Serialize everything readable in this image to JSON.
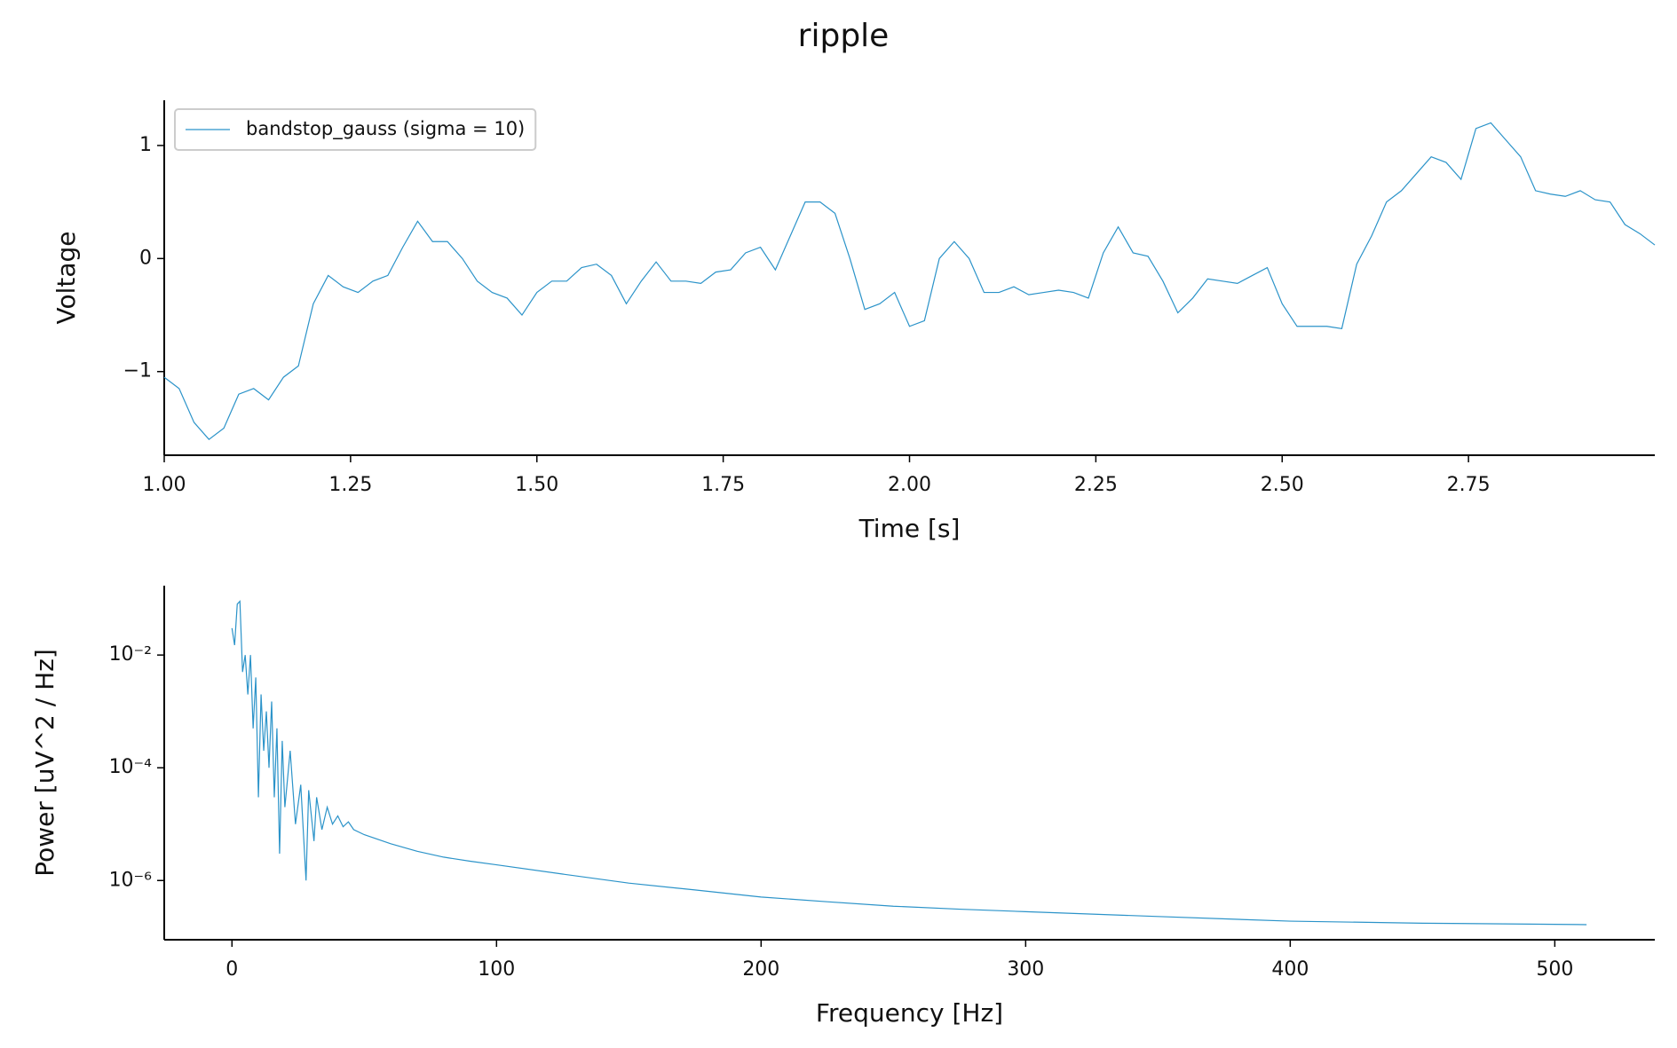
{
  "title": "ripple",
  "chart_data": [
    {
      "type": "line",
      "xlabel": "Time [s]",
      "ylabel": "Voltage",
      "x": [
        1.0,
        1.02,
        1.04,
        1.06,
        1.08,
        1.1,
        1.12,
        1.14,
        1.16,
        1.18,
        1.2,
        1.22,
        1.24,
        1.26,
        1.28,
        1.3,
        1.32,
        1.34,
        1.36,
        1.38,
        1.4,
        1.42,
        1.44,
        1.46,
        1.48,
        1.5,
        1.52,
        1.54,
        1.56,
        1.58,
        1.6,
        1.62,
        1.64,
        1.66,
        1.68,
        1.7,
        1.72,
        1.74,
        1.76,
        1.78,
        1.8,
        1.82,
        1.84,
        1.86,
        1.88,
        1.9,
        1.92,
        1.94,
        1.96,
        1.98,
        2.0,
        2.02,
        2.04,
        2.06,
        2.08,
        2.1,
        2.12,
        2.14,
        2.16,
        2.18,
        2.2,
        2.22,
        2.24,
        2.26,
        2.28,
        2.3,
        2.32,
        2.34,
        2.36,
        2.38,
        2.4,
        2.42,
        2.44,
        2.46,
        2.48,
        2.5,
        2.52,
        2.54,
        2.56,
        2.58,
        2.6,
        2.62,
        2.64,
        2.66,
        2.68,
        2.7,
        2.72,
        2.74,
        2.76,
        2.78,
        2.8,
        2.82,
        2.84,
        2.86,
        2.88,
        2.9,
        2.92,
        2.94,
        2.96,
        2.98,
        3.0
      ],
      "series": [
        {
          "name": "bandstop_gauss (sigma = 10)",
          "color": "#2b93c9",
          "values": [
            -1.05,
            -1.15,
            -1.45,
            -1.6,
            -1.5,
            -1.2,
            -1.15,
            -1.25,
            -1.05,
            -0.95,
            -0.4,
            -0.15,
            -0.25,
            -0.3,
            -0.2,
            -0.15,
            0.1,
            0.33,
            0.15,
            0.15,
            0.0,
            -0.2,
            -0.3,
            -0.35,
            -0.5,
            -0.3,
            -0.2,
            -0.2,
            -0.08,
            -0.05,
            -0.15,
            -0.4,
            -0.2,
            -0.03,
            -0.2,
            -0.2,
            -0.22,
            -0.12,
            -0.1,
            0.05,
            0.1,
            -0.1,
            0.2,
            0.5,
            0.5,
            0.4,
            0.0,
            -0.45,
            -0.4,
            -0.3,
            -0.6,
            -0.55,
            0.0,
            0.15,
            0.0,
            -0.3,
            -0.3,
            -0.25,
            -0.32,
            -0.3,
            -0.28,
            -0.3,
            -0.35,
            0.05,
            0.28,
            0.05,
            0.02,
            -0.2,
            -0.48,
            -0.35,
            -0.18,
            -0.2,
            -0.22,
            -0.15,
            -0.08,
            -0.4,
            -0.6,
            -0.6,
            -0.6,
            -0.62,
            -0.05,
            0.2,
            0.5,
            0.6,
            0.75,
            0.9,
            0.85,
            0.7,
            1.15,
            1.2,
            1.05,
            0.9,
            0.6,
            0.57,
            0.55,
            0.6,
            0.52,
            0.5,
            0.3,
            0.22,
            0.12
          ]
        }
      ],
      "xlim": [
        1.0,
        3.0
      ],
      "xticks": [
        {
          "value": 1.0,
          "label": "1.00"
        },
        {
          "value": 1.25,
          "label": "1.25"
        },
        {
          "value": 1.5,
          "label": "1.50"
        },
        {
          "value": 1.75,
          "label": "1.75"
        },
        {
          "value": 2.0,
          "label": "2.00"
        },
        {
          "value": 2.25,
          "label": "2.25"
        },
        {
          "value": 2.5,
          "label": "2.50"
        },
        {
          "value": 2.75,
          "label": "2.75"
        }
      ],
      "ylim": [
        -1.74,
        1.4
      ],
      "yticks": [
        {
          "value": -1,
          "label": "−1"
        },
        0,
        1
      ],
      "legend": "upper left"
    },
    {
      "type": "line",
      "xlabel": "Frequency [Hz]",
      "ylabel": "Power [uV^2 / Hz]",
      "log_y": true,
      "x": [
        0,
        1,
        2,
        3,
        4,
        5,
        6,
        7,
        8,
        9,
        10,
        11,
        12,
        13,
        14,
        15,
        16,
        17,
        18,
        19,
        20,
        22,
        24,
        26,
        28,
        29,
        31,
        32,
        34,
        36,
        38,
        40,
        42,
        44,
        46,
        50,
        60,
        70,
        80,
        90,
        100,
        125,
        150,
        175,
        200,
        225,
        250,
        275,
        300,
        350,
        400,
        450,
        512
      ],
      "values": [
        0.03,
        0.015,
        0.08,
        0.09,
        0.005,
        0.01,
        0.002,
        0.01,
        0.0005,
        0.004,
        3e-05,
        0.002,
        0.0002,
        0.001,
        0.0001,
        0.0015,
        3e-05,
        0.0005,
        3e-06,
        0.0003,
        2e-05,
        0.0002,
        1e-05,
        5e-05,
        1e-06,
        4e-05,
        5e-06,
        3e-05,
        8e-06,
        2e-05,
        1e-05,
        1.4e-05,
        9e-06,
        1.1e-05,
        8e-06,
        6.5e-06,
        4.5e-06,
        3.3e-06,
        2.6e-06,
        2.2e-06,
        1.9e-06,
        1.3e-06,
        9e-07,
        6.8e-07,
        5.1e-07,
        4.2e-07,
        3.5e-07,
        3.1e-07,
        2.8e-07,
        2.3e-07,
        1.9e-07,
        1.75e-07,
        1.65e-07
      ],
      "color": "#2b93c9",
      "xlim": [
        -25.6,
        537.8
      ],
      "xticks": [
        0,
        100,
        200,
        300,
        400,
        500
      ],
      "ylim": [
        8.9e-08,
        0.17
      ],
      "yticks": [
        {
          "value": 1e-06,
          "label": "10⁻⁶"
        },
        {
          "value": 0.0001,
          "label": "10⁻⁴"
        },
        {
          "value": 0.01,
          "label": "10⁻²"
        }
      ]
    }
  ]
}
